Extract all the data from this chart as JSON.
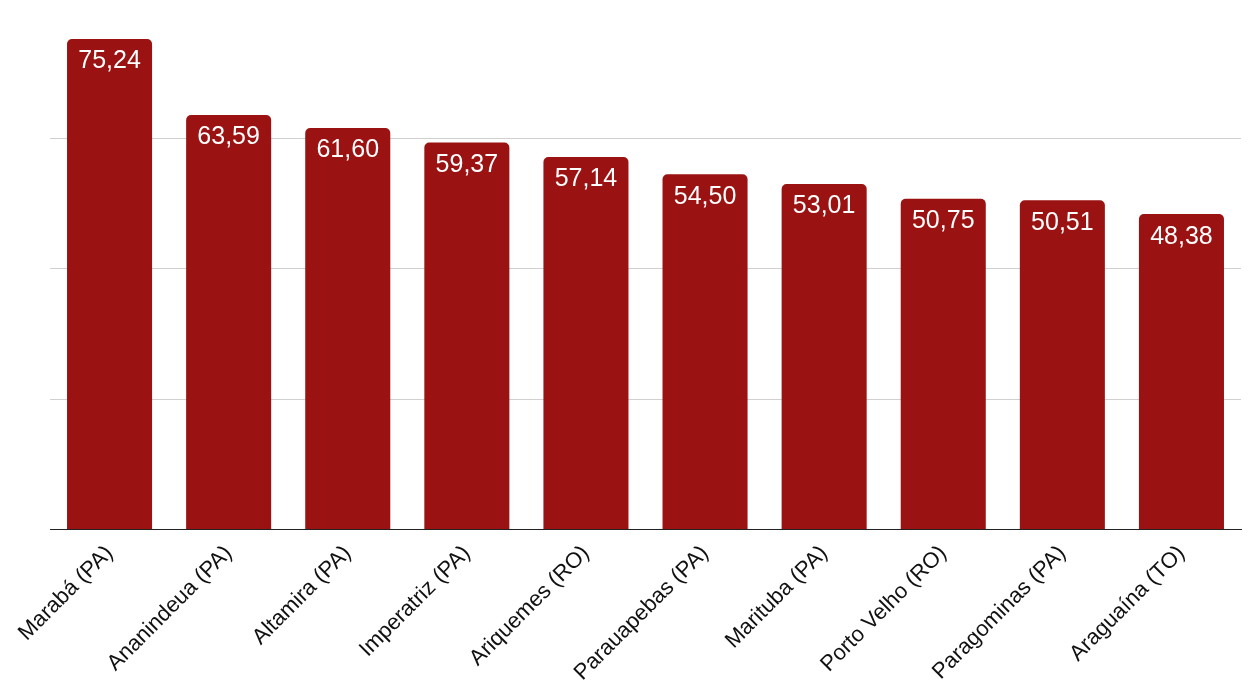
{
  "chart_data": {
    "type": "bar",
    "categories": [
      "Marabá (PA)",
      "Ananindeua (PA)",
      "Altamira (PA)",
      "Imperatriz (PA)",
      "Ariquemes (RO)",
      "Parauapebas (PA)",
      "Marituba (PA)",
      "Porto Velho (RO)",
      "Paragominas (PA)",
      "Araguaína (TO)"
    ],
    "values": [
      75.24,
      63.59,
      61.6,
      59.37,
      57.14,
      54.5,
      53.01,
      50.75,
      50.51,
      48.38
    ],
    "value_labels": [
      "75,24",
      "63,59",
      "61,60",
      "59,37",
      "57,14",
      "54,50",
      "53,01",
      "50,75",
      "50,51",
      "48,38"
    ],
    "color": "#9a1212",
    "yticks": [
      {
        "value": 0,
        "label": null
      },
      {
        "value": 20,
        "label": null
      },
      {
        "value": 40,
        "label": null
      },
      {
        "value": 60,
        "label": null
      }
    ],
    "grid": "y",
    "tick_labels": "x"
  }
}
